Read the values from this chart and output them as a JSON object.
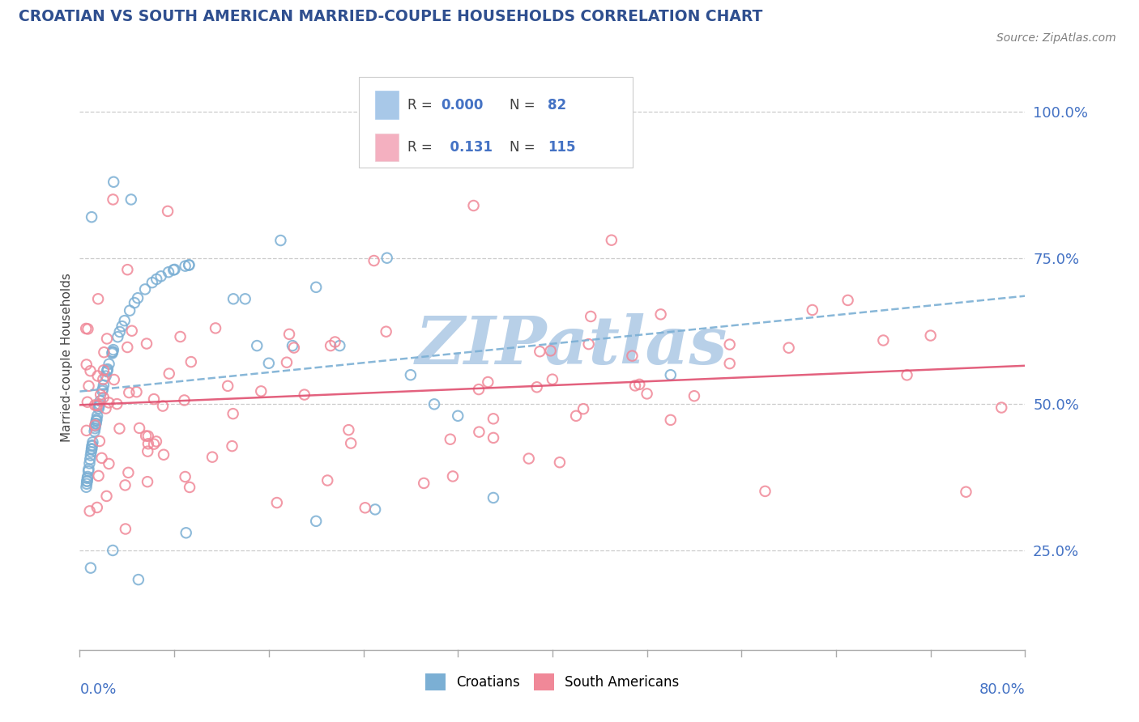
{
  "title": "CROATIAN VS SOUTH AMERICAN MARRIED-COUPLE HOUSEHOLDS CORRELATION CHART",
  "source": "Source: ZipAtlas.com",
  "ylabel": "Married-couple Households",
  "ytick_labels": [
    "25.0%",
    "50.0%",
    "75.0%",
    "100.0%"
  ],
  "ytick_values": [
    0.25,
    0.5,
    0.75,
    1.0
  ],
  "xlim": [
    0.0,
    0.8
  ],
  "ylim": [
    0.08,
    1.08
  ],
  "croatian_color": "#7bafd4",
  "south_american_color": "#f08898",
  "croatian_trend_color": "#7bafd4",
  "south_american_trend_color": "#e05070",
  "background_color": "#ffffff",
  "watermark": "ZIPatlas",
  "watermark_color": "#b8d0e8",
  "grid_color": "#cccccc",
  "legend_r1": "R = 0.000",
  "legend_n1": "N =  82",
  "legend_r2": "R =   0.131",
  "legend_n2": "N = 115",
  "legend_color1": "#a8c8e8",
  "legend_color2": "#f4b0c0",
  "legend_text_color": "#404040",
  "legend_rn_color": "#4472c4",
  "axis_label_color": "#4472c4",
  "title_color": "#2f4f8f",
  "source_color": "#808080"
}
